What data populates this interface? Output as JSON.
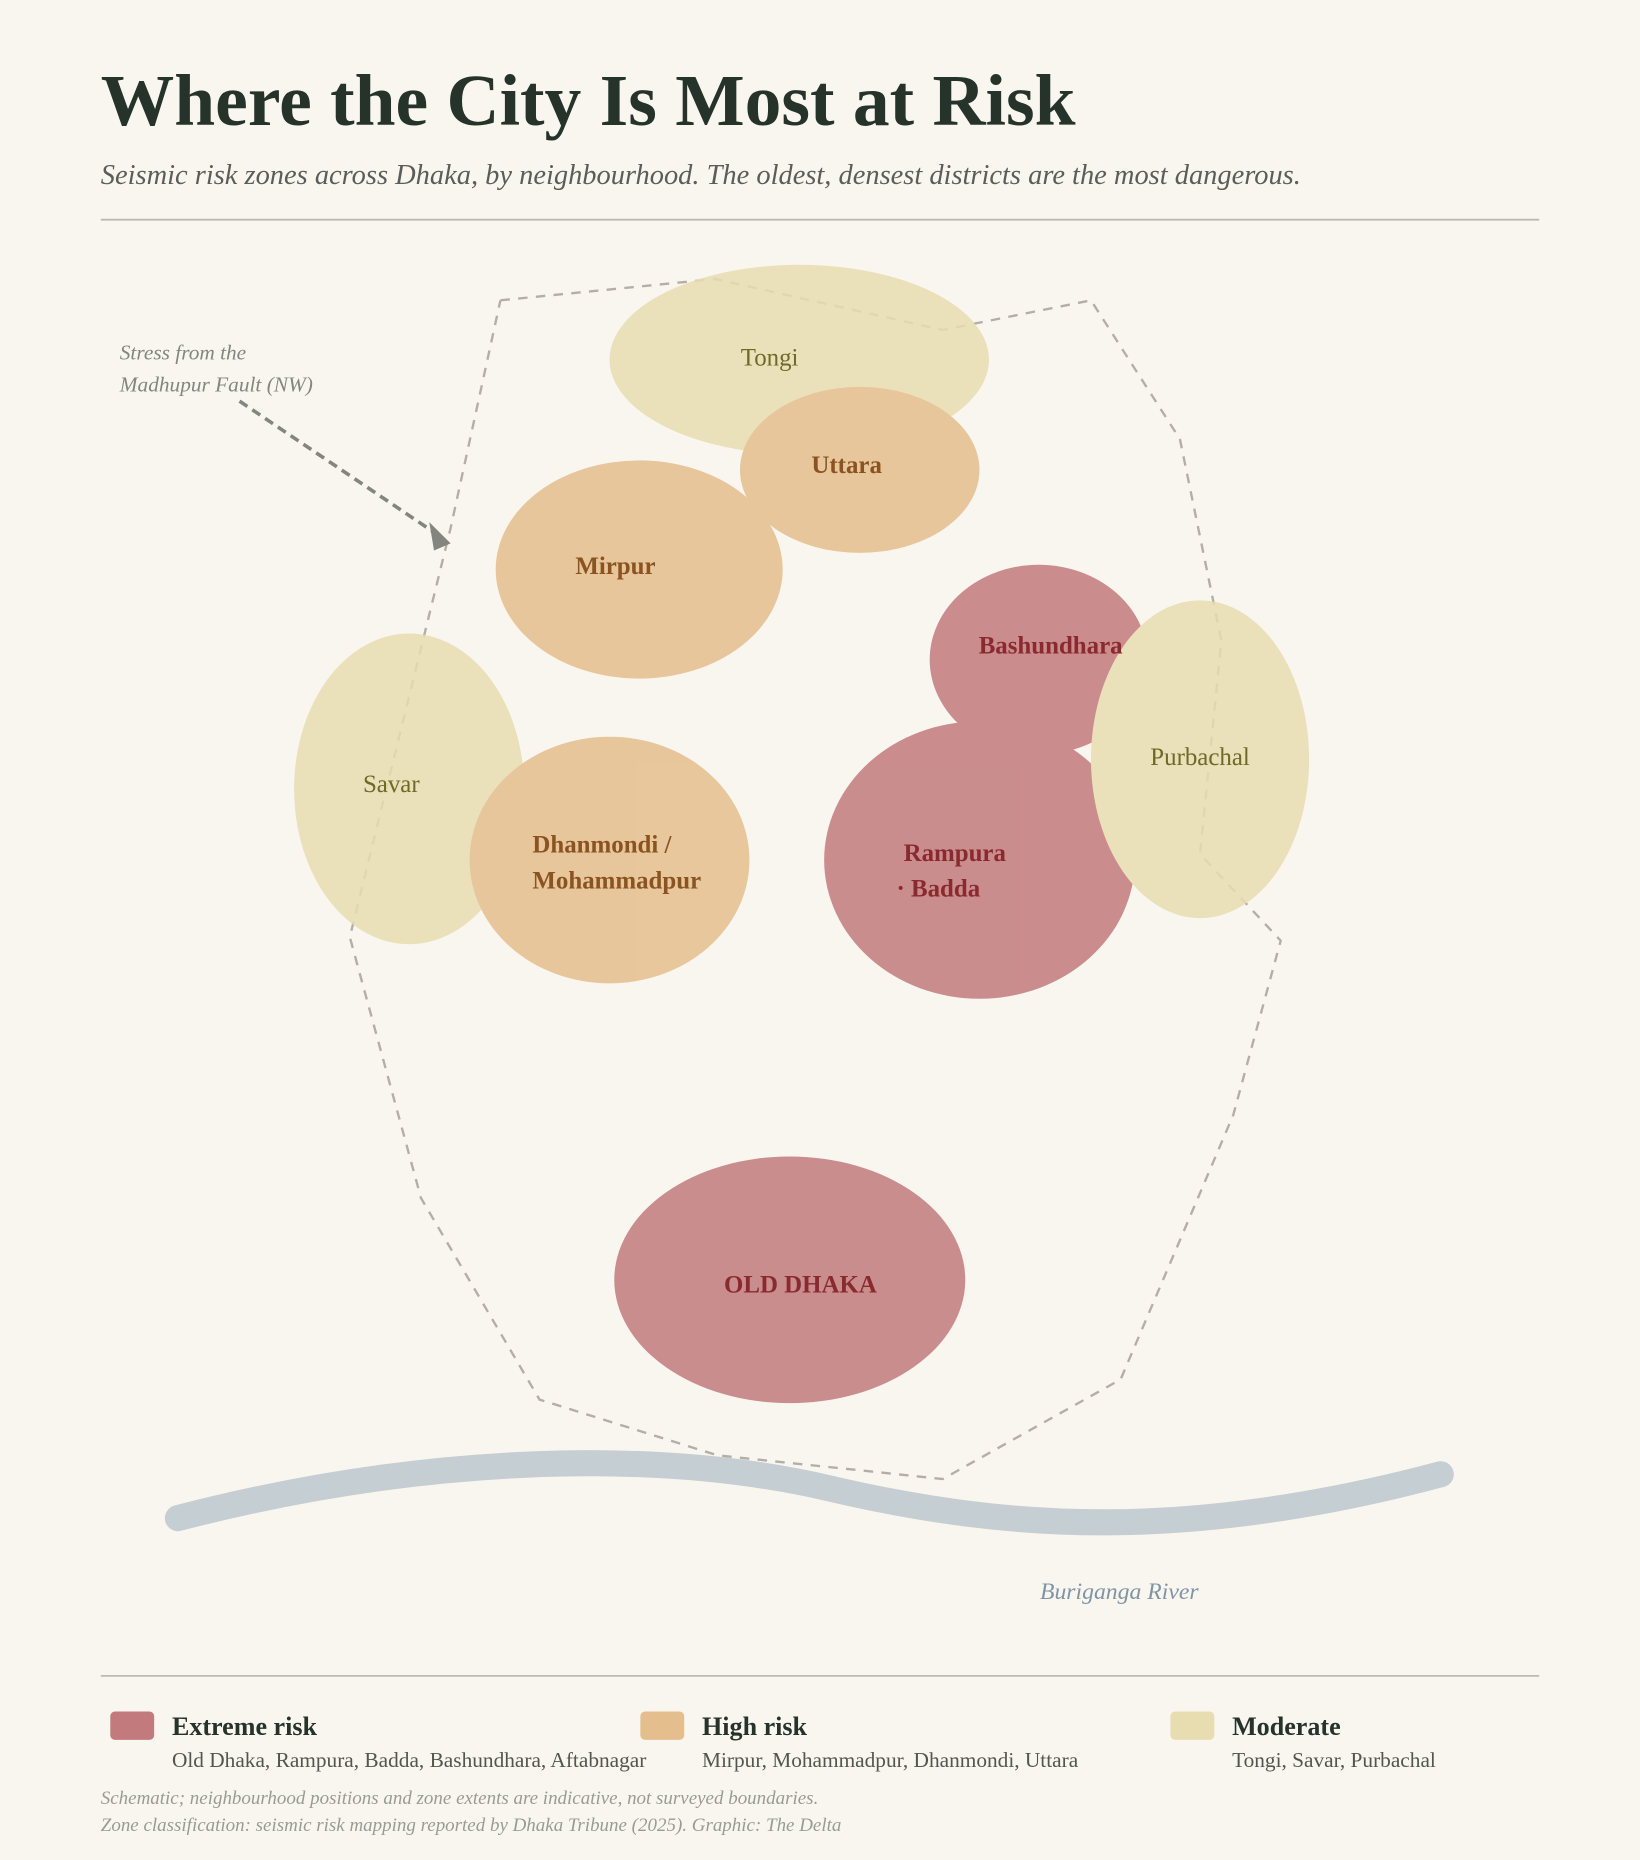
{
  "header": {
    "title": "Where the City Is Most at Risk",
    "subtitle": "Seismic risk zones across Dhaka, by neighbourhood. The oldest, densest districts are the most dangerous."
  },
  "zones": [
    {
      "lines": [
        "Tongi"
      ]
    },
    {
      "lines": [
        "Uttara"
      ]
    },
    {
      "lines": [
        "Mirpur"
      ]
    },
    {
      "lines": [
        "Bashundhara"
      ]
    },
    {
      "lines": [
        "Purbachal"
      ]
    },
    {
      "lines": [
        "Savar"
      ]
    },
    {
      "lines": [
        "Dhanmondi /",
        "Mohammadpur"
      ]
    },
    {
      "lines": [
        "Rampura",
        "· Badda"
      ]
    },
    {
      "lines": [
        "OLD DHAKA"
      ]
    }
  ],
  "annotation": {
    "lines": [
      "Stress from the",
      "Madhupur Fault (NW)"
    ]
  },
  "river": "Buriganga River",
  "legend": [
    {
      "label": "Extreme risk",
      "desc": "Old Dhaka, Rampura, Badda, Bashundhara, Aftabnagar"
    },
    {
      "label": "High risk",
      "desc": "Mirpur, Mohammadpur, Dhanmondi, Uttara"
    },
    {
      "label": "Moderate",
      "desc": "Tongi, Savar, Purbachal"
    }
  ],
  "notes": [
    "Schematic; neighbourhood positions and zone extents are indicative, not surveyed boundaries.",
    "Zone classification: seismic risk mapping reported by Dhaka Tribune (2025). Graphic: The Delta"
  ]
}
